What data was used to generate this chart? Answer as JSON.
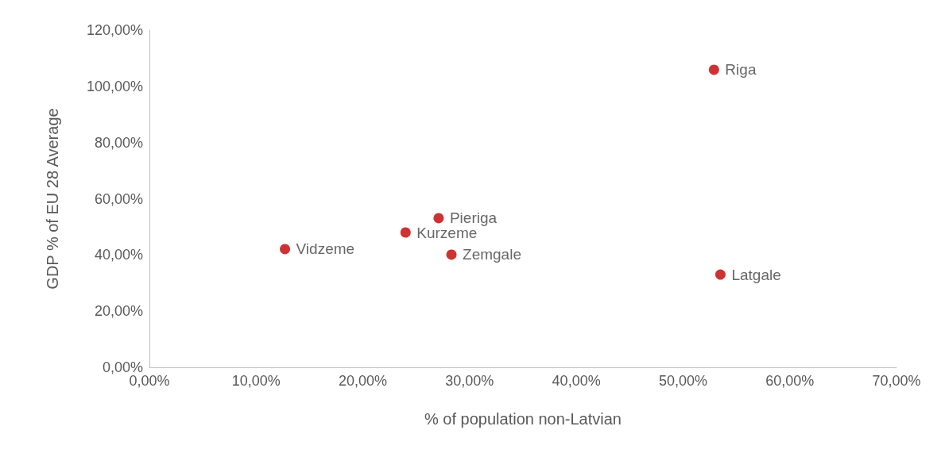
{
  "chart_data": {
    "type": "scatter",
    "xlabel": "% of population non-Latvian",
    "ylabel": "GDP % of EU 28 Average",
    "x": [
      52.9,
      53.5,
      12.7,
      24.0,
      27.1,
      28.3
    ],
    "values": [
      105.9,
      33.0,
      42.1,
      48.0,
      53.1,
      40.1
    ],
    "color": "#c00000",
    "marker": "circle",
    "xlim": [
      0,
      70
    ],
    "ylim": [
      0,
      120
    ],
    "xticks": [
      {
        "value": 0,
        "label": "0,00%"
      },
      {
        "value": 10,
        "label": "10,00%"
      },
      {
        "value": 20,
        "label": "20,00%"
      },
      {
        "value": 30,
        "label": "30,00%"
      },
      {
        "value": 40,
        "label": "40,00%"
      },
      {
        "value": 50,
        "label": "50,00%"
      },
      {
        "value": 60,
        "label": "60,00%"
      },
      {
        "value": 70,
        "label": "70,00%"
      }
    ],
    "yticks": [
      {
        "value": 0,
        "label": "0,00%"
      },
      {
        "value": 20,
        "label": "20,00%"
      },
      {
        "value": 40,
        "label": "40,00%"
      },
      {
        "value": 60,
        "label": "60,00%"
      },
      {
        "value": 80,
        "label": "80,00%"
      },
      {
        "value": 100,
        "label": "100,00%"
      },
      {
        "value": 120,
        "label": "120,00%"
      }
    ],
    "annotations": [
      {
        "text": "Riga",
        "x": 52.9,
        "y": 105.9
      },
      {
        "text": "Latgale",
        "x": 53.5,
        "y": 33.0
      },
      {
        "text": "Vidzeme",
        "x": 12.7,
        "y": 42.1
      },
      {
        "text": "Kurzeme",
        "x": 24.0,
        "y": 48.0
      },
      {
        "text": "Pieriga",
        "x": 27.1,
        "y": 53.1
      },
      {
        "text": "Zemgale",
        "x": 28.3,
        "y": 40.1
      }
    ]
  }
}
